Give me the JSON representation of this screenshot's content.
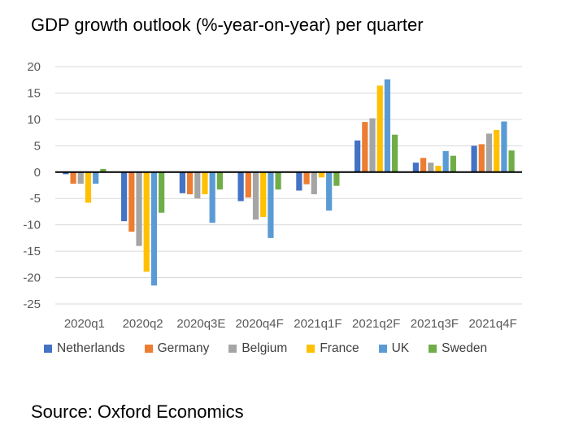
{
  "title": "GDP growth outlook (%-year-on-year) per quarter",
  "source": "Source: Oxford Economics",
  "chart_data": {
    "type": "bar",
    "title": "GDP growth outlook (%-year-on-year) per quarter",
    "xlabel": "",
    "ylabel": "",
    "ylim": [
      -25,
      20
    ],
    "yticks": [
      20,
      15,
      10,
      5,
      0,
      -5,
      -10,
      -15,
      -20,
      -25
    ],
    "grid": true,
    "legend_position": "bottom",
    "categories": [
      "2020q1",
      "2020q2",
      "2020q3E",
      "2020q4F",
      "2021q1F",
      "2021q2F",
      "2021q3F",
      "2021q4F"
    ],
    "series": [
      {
        "name": "Netherlands",
        "color": "#4472C4",
        "values": [
          -0.4,
          -9.3,
          -4.0,
          -5.5,
          -3.5,
          6.0,
          1.8,
          5.0
        ]
      },
      {
        "name": "Germany",
        "color": "#ED7D31",
        "values": [
          -2.2,
          -11.3,
          -4.2,
          -4.8,
          -2.3,
          9.5,
          2.7,
          5.3
        ]
      },
      {
        "name": "Belgium",
        "color": "#A5A5A5",
        "values": [
          -2.2,
          -14.0,
          -5.0,
          -9.0,
          -4.2,
          10.2,
          1.8,
          7.3
        ]
      },
      {
        "name": "France",
        "color": "#FFC000",
        "values": [
          -5.8,
          -18.9,
          -4.2,
          -8.5,
          -1.0,
          16.4,
          1.2,
          8.0
        ]
      },
      {
        "name": "UK",
        "color": "#5B9BD5",
        "values": [
          -2.2,
          -21.5,
          -9.6,
          -12.5,
          -7.3,
          17.6,
          4.0,
          9.6
        ]
      },
      {
        "name": "Sweden",
        "color": "#70AD47",
        "values": [
          0.6,
          -7.7,
          -3.3,
          -3.3,
          -2.6,
          7.1,
          3.1,
          4.1
        ]
      }
    ]
  }
}
